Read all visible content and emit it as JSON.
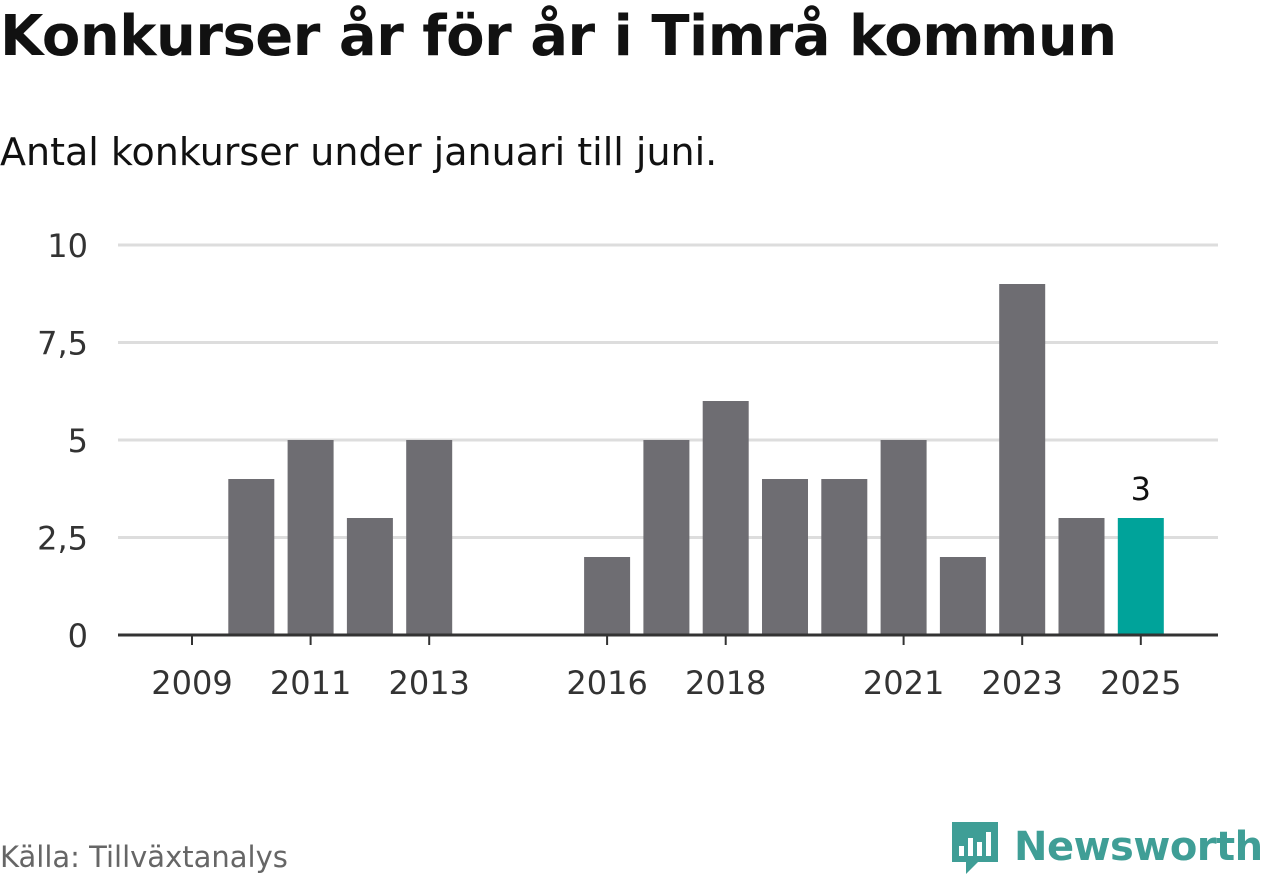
{
  "header": {
    "title": "Konkurser år för år i Timrå kommun",
    "subtitle": "Antal konkurser under januari till juni."
  },
  "chart_data": {
    "type": "bar",
    "title": "Konkurser år för år i Timrå kommun",
    "subtitle": "Antal konkurser under januari till juni.",
    "xlabel": "",
    "ylabel": "",
    "categories": [
      "2009",
      "2010",
      "2011",
      "2012",
      "2013",
      "2014",
      "2015",
      "2016",
      "2017",
      "2018",
      "2019",
      "2020",
      "2021",
      "2022",
      "2023",
      "2024",
      "2025"
    ],
    "values": [
      0,
      4,
      5,
      3,
      5,
      0,
      0,
      2,
      5,
      6,
      4,
      4,
      5,
      2,
      9,
      3,
      3
    ],
    "xticks": [
      "2009",
      "2011",
      "2013",
      "2016",
      "2018",
      "2021",
      "2023",
      "2025"
    ],
    "yticks": [
      "0",
      "2,5",
      "5",
      "7,5",
      "10"
    ],
    "ytick_values": [
      0,
      2.5,
      5,
      7.5,
      10
    ],
    "ylim": [
      0,
      10
    ],
    "grid": true,
    "highlight": {
      "category": "2025",
      "label": "3"
    },
    "colors": {
      "bar": "#6e6d72",
      "highlight": "#00a39a",
      "grid": "#dddddd",
      "axis": "#333333"
    }
  },
  "footer": {
    "source": "Källa: Tillväxtanalys",
    "brand": "Newsworthy",
    "brand_icon": "bar-chart-bubble-icon"
  }
}
